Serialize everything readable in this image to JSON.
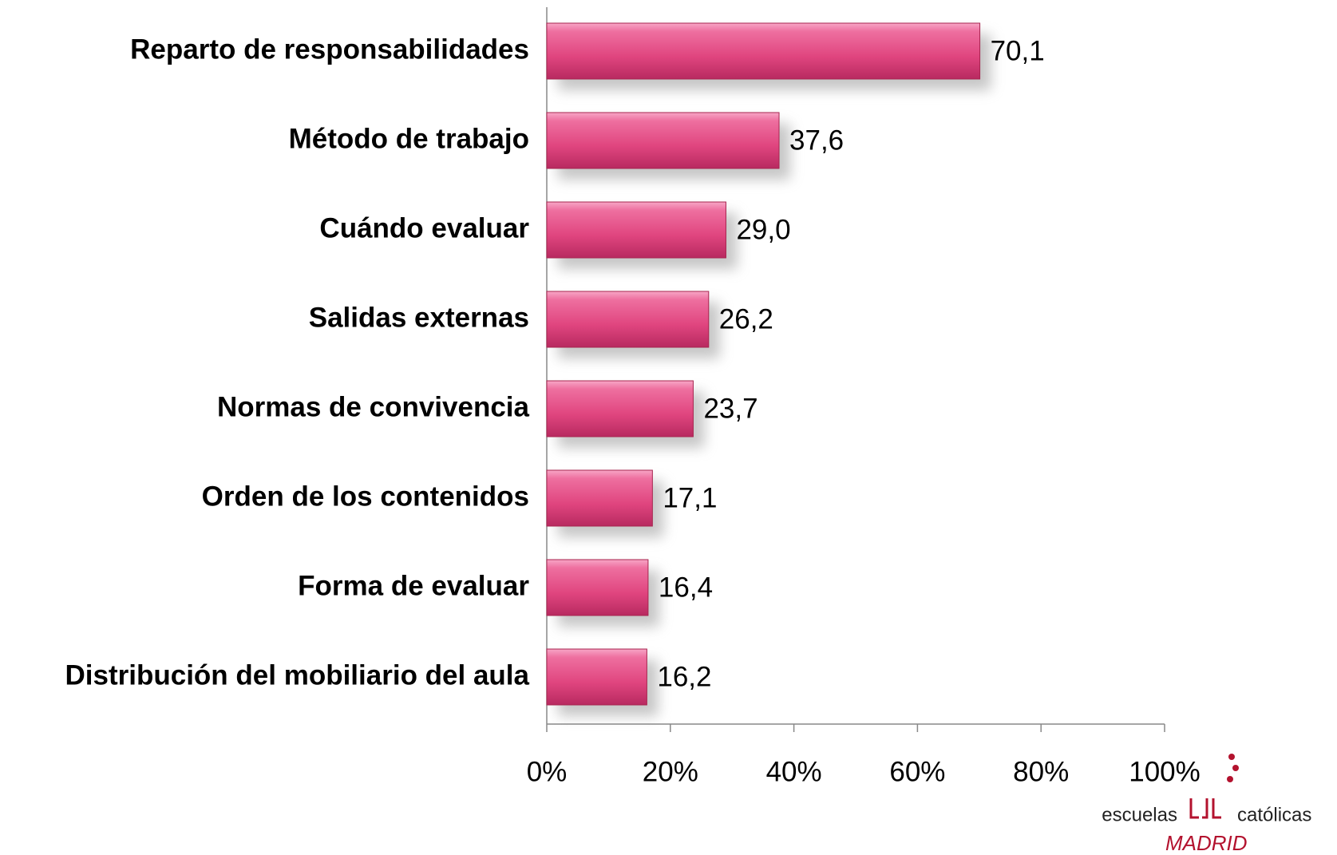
{
  "chart_data": {
    "type": "bar",
    "orientation": "horizontal",
    "categories": [
      "Reparto de responsabilidades",
      "Método de trabajo",
      "Cuándo evaluar",
      "Salidas externas",
      "Normas de convivencia",
      "Orden de los contenidos",
      "Forma de evaluar",
      "Distribución del mobiliario del aula"
    ],
    "values": [
      70.1,
      37.6,
      29.0,
      26.2,
      23.7,
      17.1,
      16.4,
      16.2
    ],
    "value_labels": [
      "70,1",
      "37,6",
      "29,0",
      "26,2",
      "23,7",
      "17,1",
      "16,4",
      "16,2"
    ],
    "color": "#e0457f",
    "xlim": [
      0,
      100
    ],
    "xticks": [
      {
        "value": 0,
        "label": "0%"
      },
      {
        "value": 20,
        "label": "20%"
      },
      {
        "value": 40,
        "label": "40%"
      },
      {
        "value": 60,
        "label": "60%"
      },
      {
        "value": 80,
        "label": "80%"
      },
      {
        "value": 100,
        "label": "100%"
      }
    ]
  },
  "logo": {
    "left": "escuelas",
    "right": "católicas",
    "bottom": "MADRID"
  }
}
